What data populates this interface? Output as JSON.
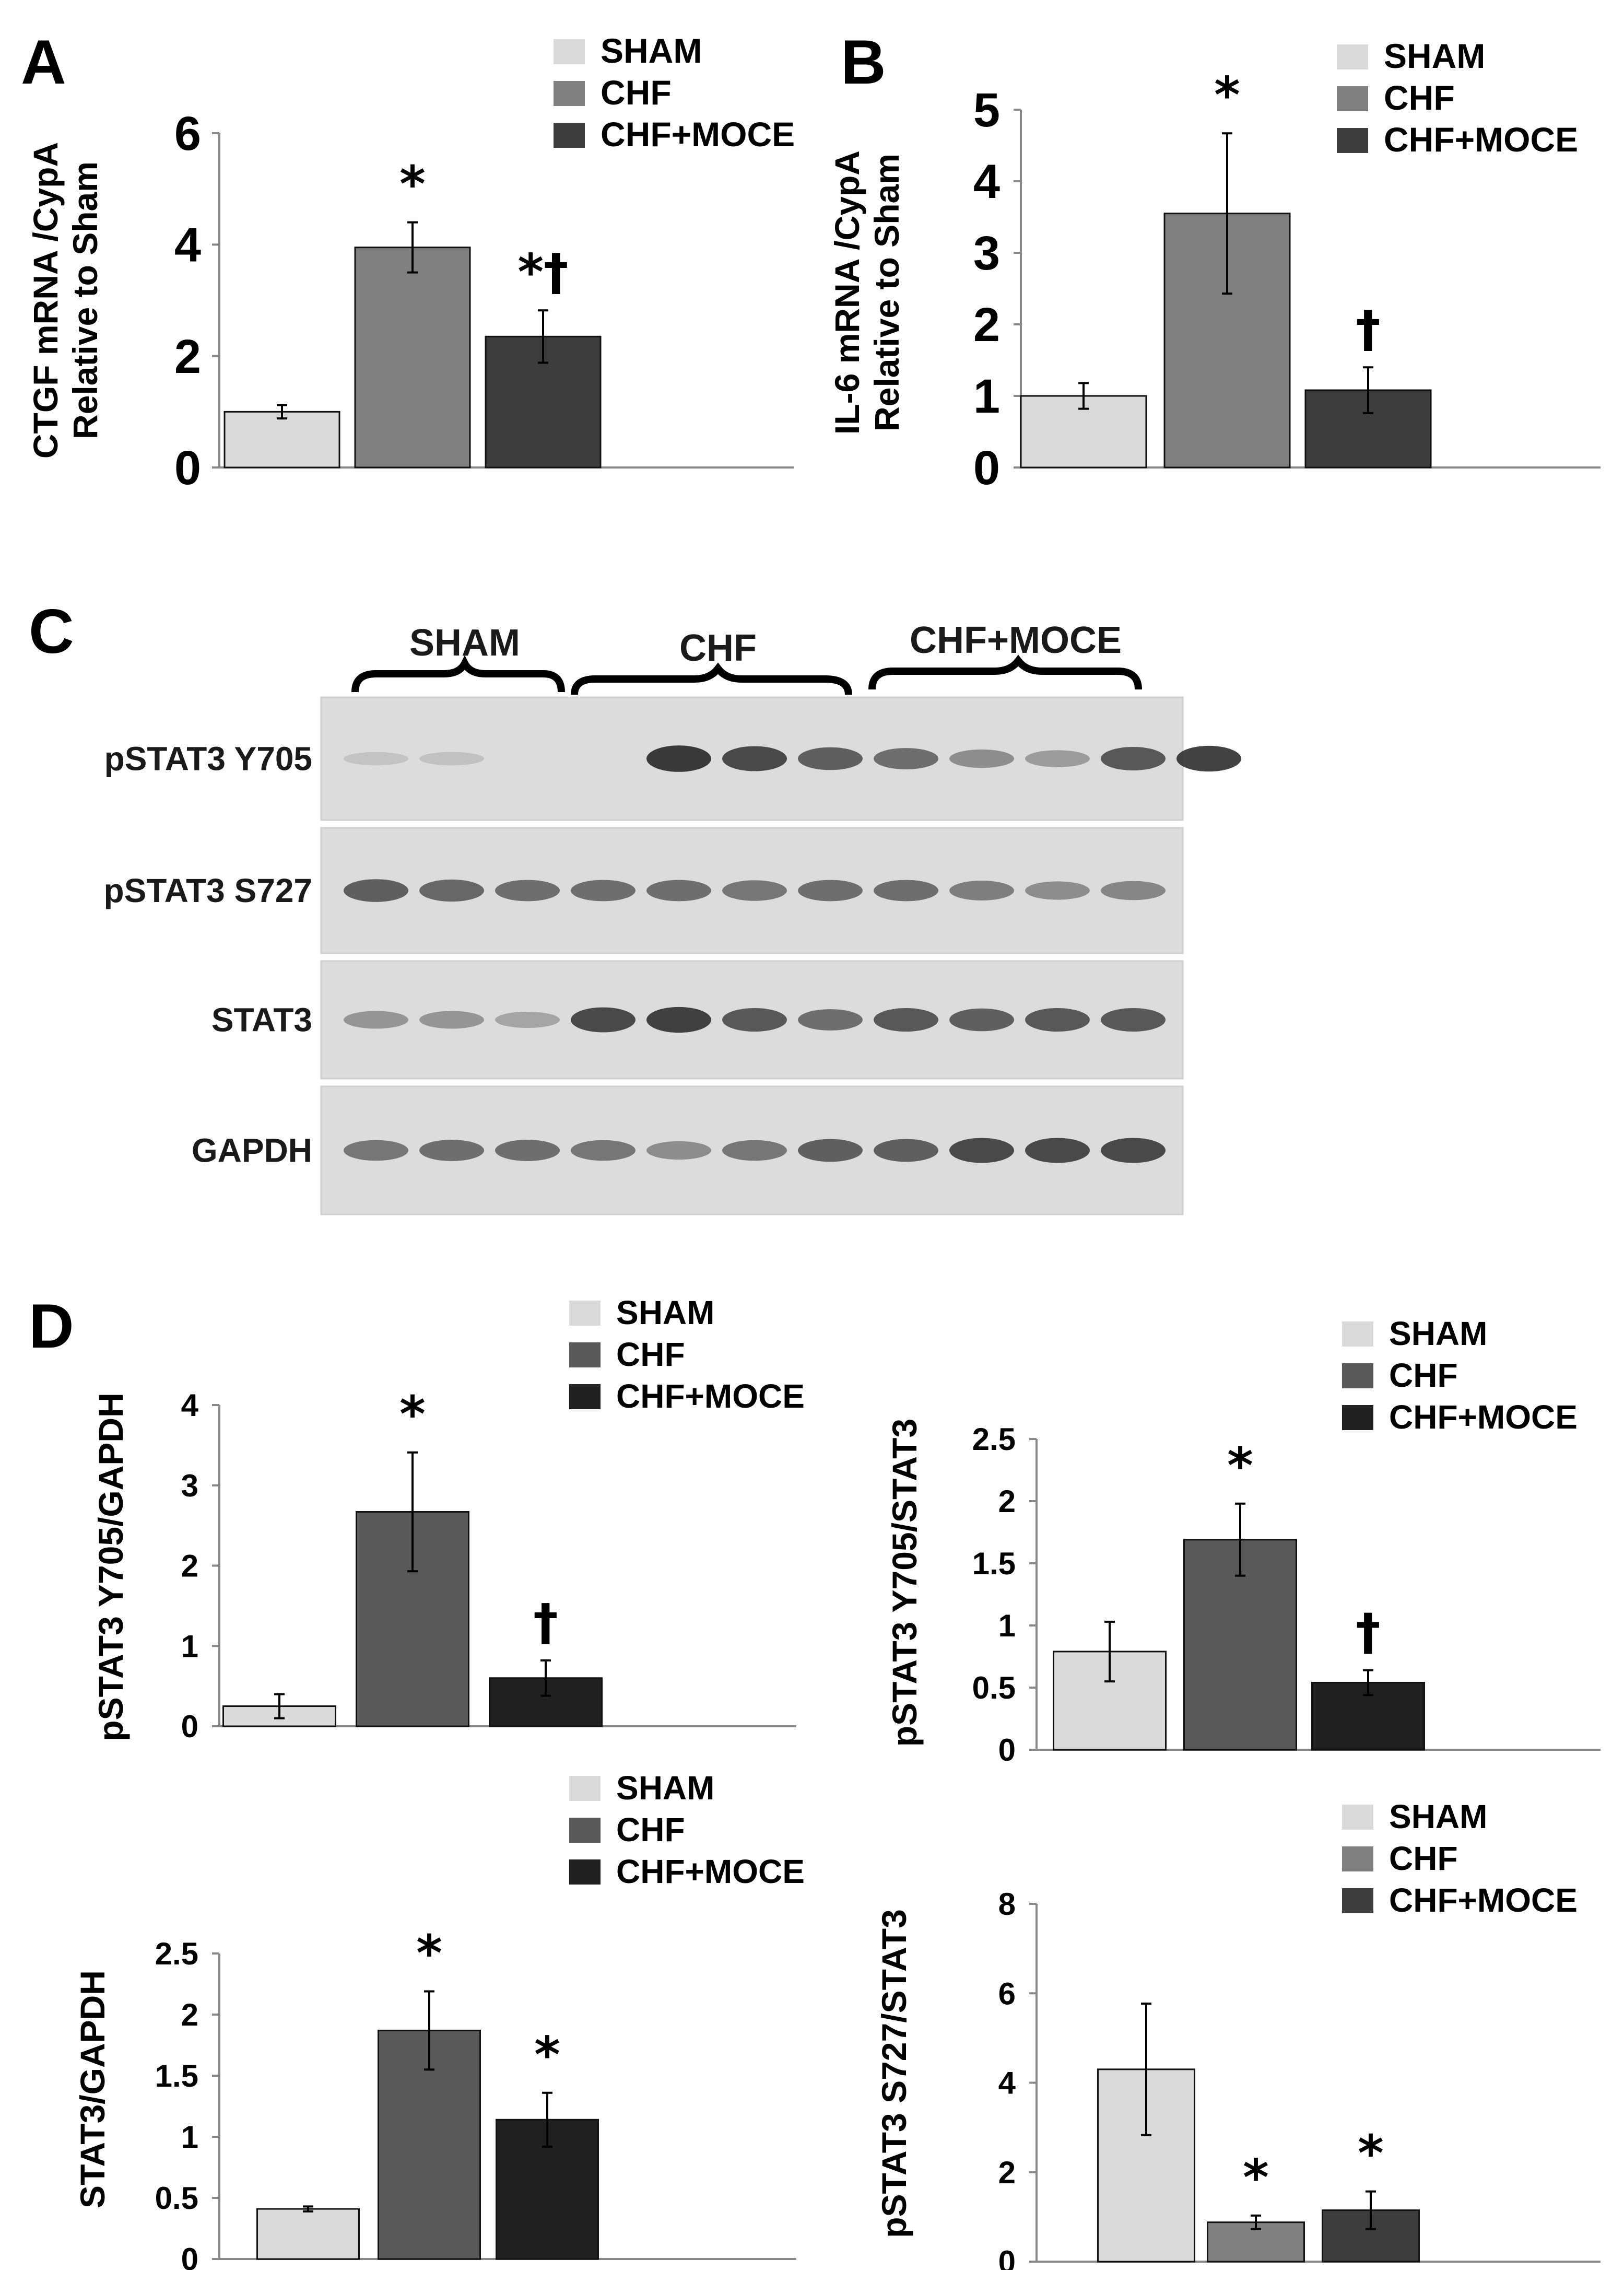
{
  "panel_letters": [
    "A",
    "B",
    "C",
    "D"
  ],
  "legend": [
    "SHAM",
    "CHF",
    "CHF+MOCE"
  ],
  "chart_data": [
    {
      "id": "A",
      "type": "bar",
      "ylabel_lines": [
        "CTGF mRNA /CypA",
        "Relative to Sham"
      ],
      "categories": [
        "SHAM",
        "CHF",
        "CHF+MOCE"
      ],
      "values": [
        1.0,
        3.95,
        2.35
      ],
      "errors": [
        0.12,
        0.45,
        0.47
      ],
      "significance": [
        "",
        "*",
        "*†"
      ],
      "ylim": [
        0,
        6
      ],
      "yticks": [
        "0",
        "2",
        "4",
        "6"
      ],
      "colors": [
        "#dadada",
        "#808080",
        "#3d3d3d"
      ],
      "legend_position": "top-right"
    },
    {
      "id": "B",
      "type": "bar",
      "ylabel_lines": [
        "IL-6 mRNA /CypA",
        "Relative to Sham"
      ],
      "categories": [
        "SHAM",
        "CHF",
        "CHF+MOCE"
      ],
      "values": [
        1.0,
        3.55,
        1.08
      ],
      "errors": [
        0.18,
        1.12,
        0.32
      ],
      "significance": [
        "",
        "*",
        "†"
      ],
      "ylim": [
        0,
        5
      ],
      "yticks": [
        "0",
        "1",
        "2",
        "3",
        "4",
        "5"
      ],
      "colors": [
        "#dadada",
        "#808080",
        "#3d3d3d"
      ],
      "legend_position": "top-right"
    },
    {
      "id": "D1",
      "type": "bar",
      "ylabel_lines": [
        "pSTAT3 Y705/GAPDH"
      ],
      "categories": [
        "SHAM",
        "CHF",
        "CHF+MOCE"
      ],
      "values": [
        0.25,
        2.67,
        0.6
      ],
      "errors": [
        0.15,
        0.74,
        0.22
      ],
      "significance": [
        "",
        "*",
        "†"
      ],
      "ylim": [
        0,
        4
      ],
      "yticks": [
        "0",
        "1",
        "2",
        "3",
        "4"
      ],
      "colors": [
        "#dadada",
        "#595959",
        "#202020"
      ],
      "legend_position": "top-right"
    },
    {
      "id": "D2",
      "type": "bar",
      "ylabel_lines": [
        "pSTAT3 Y705/STAT3"
      ],
      "categories": [
        "SHAM",
        "CHF",
        "CHF+MOCE"
      ],
      "values": [
        0.79,
        1.69,
        0.54
      ],
      "errors": [
        0.24,
        0.29,
        0.1
      ],
      "significance": [
        "",
        "*",
        "†"
      ],
      "ylim": [
        0,
        2.5
      ],
      "yticks": [
        "0",
        "0.5",
        "1",
        "1.5",
        "2",
        "2.5"
      ],
      "colors": [
        "#dadada",
        "#595959",
        "#202020"
      ],
      "legend_position": "top-right"
    },
    {
      "id": "D3",
      "type": "bar",
      "ylabel_lines": [
        "STAT3/GAPDH"
      ],
      "categories": [
        "SHAM",
        "CHF",
        "CHF+MOCE"
      ],
      "values": [
        0.41,
        1.87,
        1.14
      ],
      "errors": [
        0.02,
        0.32,
        0.22
      ],
      "significance": [
        "",
        "*",
        "*"
      ],
      "ylim": [
        0,
        2.5
      ],
      "yticks": [
        "0",
        "0.5",
        "1",
        "1.5",
        "2",
        "2.5"
      ],
      "colors": [
        "#dadada",
        "#595959",
        "#202020"
      ],
      "legend_position": "top-right"
    },
    {
      "id": "D4",
      "type": "bar",
      "ylabel_lines": [
        "pSTAT3 S727/STAT3"
      ],
      "categories": [
        "SHAM",
        "CHF",
        "CHF+MOCE"
      ],
      "values": [
        4.3,
        0.88,
        1.15
      ],
      "errors": [
        1.47,
        0.15,
        0.42
      ],
      "significance": [
        "",
        "*",
        "*"
      ],
      "ylim": [
        0,
        8
      ],
      "yticks": [
        "0",
        "2",
        "4",
        "6",
        "8"
      ],
      "colors": [
        "#dadada",
        "#808080",
        "#3d3d3d"
      ],
      "legend_position": "top-right"
    }
  ],
  "western_blot": {
    "group_labels": [
      "SHAM",
      "CHF",
      "CHF+MOCE"
    ],
    "rows": [
      {
        "label": "pSTAT3 Y705",
        "intensities": [
          0.05,
          0.06,
          0.0,
          0.0,
          0.95,
          0.85,
          0.7,
          0.6,
          0.4,
          0.3,
          0.75,
          0.9
        ]
      },
      {
        "label": "pSTAT3 S727",
        "intensities": [
          0.7,
          0.65,
          0.6,
          0.6,
          0.6,
          0.55,
          0.6,
          0.6,
          0.5,
          0.4,
          0.45,
          0.0
        ]
      },
      {
        "label": "STAT3",
        "intensities": [
          0.35,
          0.35,
          0.25,
          0.85,
          0.9,
          0.75,
          0.6,
          0.75,
          0.7,
          0.75,
          0.75,
          0.0
        ]
      },
      {
        "label": "GAPDH",
        "intensities": [
          0.55,
          0.6,
          0.6,
          0.55,
          0.4,
          0.55,
          0.7,
          0.7,
          0.85,
          0.85,
          0.85,
          0.0
        ]
      }
    ]
  }
}
